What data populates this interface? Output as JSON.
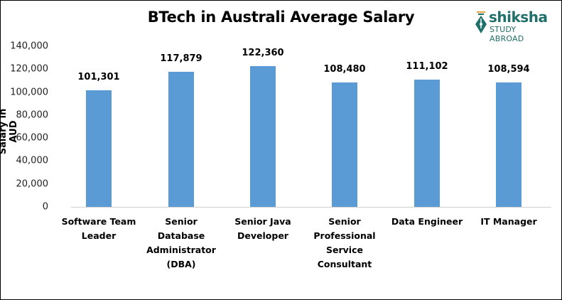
{
  "chart_data": {
    "type": "bar",
    "title": "BTech in Australi Average Salary",
    "xlabel": "",
    "ylabel": "Salary in AUD",
    "ylim": [
      0,
      140000
    ],
    "yticks": [
      "0",
      "20,000",
      "40,000",
      "60,000",
      "80,000",
      "100,000",
      "120,000",
      "140,000"
    ],
    "grid": false,
    "legend": null,
    "categories": [
      "Software Team Leader",
      "Senior Database Administrator (DBA)",
      "Senior Java Developer",
      "Senior Professional Service Consultant",
      "Data Engineer",
      "IT Manager"
    ],
    "values": [
      101301,
      117879,
      122360,
      108480,
      111102,
      108594
    ],
    "data_labels": [
      "101,301",
      "117,879",
      "122,360",
      "108,480",
      "111,102",
      "108,594"
    ],
    "bar_color": "#5b9bd5"
  },
  "logo": {
    "word": "shiksha",
    "subtitle": "STUDY ABROAD",
    "color": "#1f6f6a"
  },
  "category_display": [
    "Software Team\nLeader",
    "Senior Database\nAdministrator\n(DBA)",
    "Senior Java\nDeveloper",
    "Senior\nProfessional\nService\nConsultant",
    "Data Engineer",
    "IT Manager"
  ]
}
